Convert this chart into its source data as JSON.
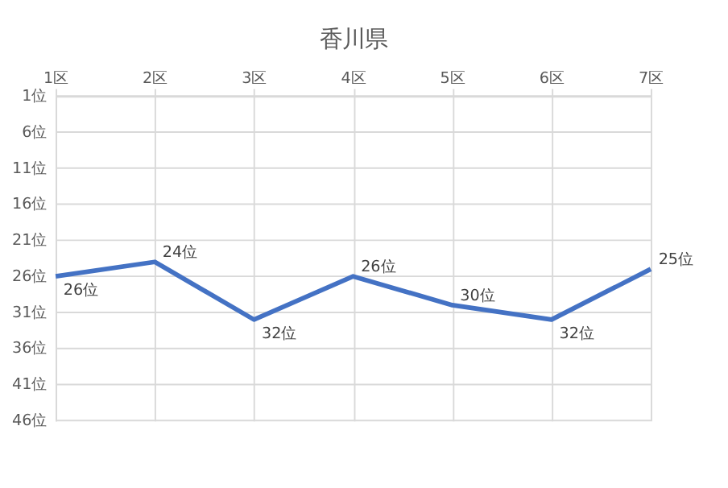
{
  "chart_data": {
    "type": "line",
    "title": "香川県",
    "categories": [
      "1区",
      "2区",
      "3区",
      "4区",
      "5区",
      "6区",
      "7区"
    ],
    "series": [
      {
        "color": "#4472c4",
        "values": [
          26,
          24,
          32,
          26,
          30,
          32,
          25
        ],
        "value_labels": [
          "26位",
          "24位",
          "32位",
          "26位",
          "30位",
          "32位",
          "25位"
        ]
      }
    ],
    "ylim": [
      46,
      1
    ],
    "yticks": [
      {
        "value": 1,
        "label": "1位"
      },
      {
        "value": 6,
        "label": "6位"
      },
      {
        "value": 11,
        "label": "11位"
      },
      {
        "value": 16,
        "label": "16位"
      },
      {
        "value": 21,
        "label": "21位"
      },
      {
        "value": 26,
        "label": "26位"
      },
      {
        "value": 31,
        "label": "31位"
      },
      {
        "value": 36,
        "label": "36位"
      },
      {
        "value": 41,
        "label": "41位"
      },
      {
        "value": 46,
        "label": "46位"
      }
    ],
    "grid": true,
    "marker": "none",
    "line_style": "solid"
  }
}
